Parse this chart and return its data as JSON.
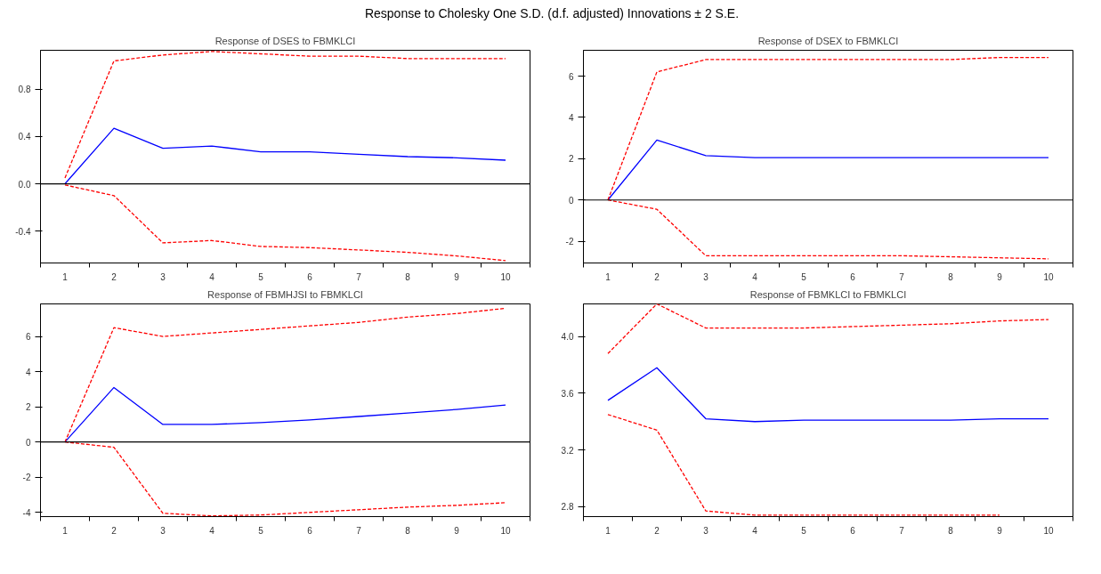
{
  "chart_data": [
    {
      "type": "line",
      "title": "Response of DSES to FBMKLCI",
      "annotations": [
        "Response to Cholesky One S.D. (d.f. adjusted) Innovations ± 2 S.E."
      ],
      "categories": [
        "1",
        "2",
        "3",
        "4",
        "5",
        "6",
        "7",
        "8",
        "9",
        "10"
      ],
      "ylim": [
        -0.67,
        1.13
      ],
      "yticks": [
        -0.4,
        {
          "value": 0,
          "label": "0.0"
        },
        0.4,
        0.8
      ],
      "grid": false,
      "series": [
        {
          "color": "#0000ff",
          "line_style": "solid",
          "values": [
            0.0,
            0.47,
            0.3,
            0.32,
            0.27,
            0.27,
            0.25,
            0.23,
            0.22,
            0.2
          ]
        },
        {
          "color": "#ff0000",
          "line_style": "dashed",
          "values": [
            0.05,
            1.04,
            1.09,
            1.12,
            1.1,
            1.08,
            1.08,
            1.06,
            1.06,
            1.06
          ]
        },
        {
          "color": "#ff0000",
          "line_style": "dashed",
          "values": [
            -0.01,
            -0.1,
            -0.5,
            -0.48,
            -0.53,
            -0.54,
            -0.56,
            -0.58,
            -0.61,
            -0.65
          ]
        }
      ],
      "ref_lines": [
        {
          "axis": "y",
          "value": 0,
          "color": "#000000"
        }
      ]
    },
    {
      "type": "line",
      "title": "Response of DSEX to FBMKLCI",
      "categories": [
        "1",
        "2",
        "3",
        "4",
        "5",
        "6",
        "7",
        "8",
        "9",
        "10"
      ],
      "ylim": [
        -3.05,
        7.25
      ],
      "yticks": [
        -2,
        0,
        2,
        4,
        6
      ],
      "grid": false,
      "series": [
        {
          "color": "#0000ff",
          "line_style": "solid",
          "values": [
            0.0,
            2.9,
            2.15,
            2.05,
            2.05,
            2.05,
            2.05,
            2.05,
            2.05,
            2.05
          ]
        },
        {
          "color": "#ff0000",
          "line_style": "dashed",
          "values": [
            0.0,
            6.2,
            6.8,
            6.8,
            6.8,
            6.8,
            6.8,
            6.8,
            6.9,
            6.9
          ]
        },
        {
          "color": "#ff0000",
          "line_style": "dashed",
          "values": [
            0.0,
            -0.45,
            -2.7,
            -2.7,
            -2.7,
            -2.7,
            -2.7,
            -2.75,
            -2.8,
            -2.85
          ]
        }
      ],
      "ref_lines": [
        {
          "axis": "y",
          "value": 0,
          "color": "#000000"
        }
      ]
    },
    {
      "type": "line",
      "title": "Response of FBMHJSI to FBMKLCI",
      "categories": [
        "1",
        "2",
        "3",
        "4",
        "5",
        "6",
        "7",
        "8",
        "9",
        "10"
      ],
      "ylim": [
        -4.24,
        7.85
      ],
      "yticks": [
        -4,
        -2,
        0,
        2,
        4,
        6
      ],
      "grid": false,
      "series": [
        {
          "color": "#0000ff",
          "line_style": "solid",
          "values": [
            0.0,
            3.1,
            1.0,
            1.0,
            1.1,
            1.25,
            1.45,
            1.65,
            1.85,
            2.1
          ]
        },
        {
          "color": "#ff0000",
          "line_style": "dashed",
          "values": [
            0.0,
            6.5,
            6.0,
            6.2,
            6.4,
            6.6,
            6.8,
            7.1,
            7.3,
            7.6
          ]
        },
        {
          "color": "#ff0000",
          "line_style": "dashed",
          "values": [
            0.0,
            -0.3,
            -4.05,
            -4.2,
            -4.15,
            -4.0,
            -3.85,
            -3.7,
            -3.6,
            -3.45
          ]
        }
      ],
      "ref_lines": [
        {
          "axis": "y",
          "value": 0,
          "color": "#000000"
        }
      ]
    },
    {
      "type": "line",
      "title": "Response of FBMKLCI to FBMKLCI",
      "categories": [
        "1",
        "2",
        "3",
        "4",
        "5",
        "6",
        "7",
        "8",
        "9",
        "10"
      ],
      "ylim": [
        2.73,
        4.23
      ],
      "yticks": [
        2.8,
        3.2,
        3.6,
        {
          "value": 4,
          "label": "4.0"
        }
      ],
      "grid": false,
      "series": [
        {
          "color": "#0000ff",
          "line_style": "solid",
          "values": [
            3.55,
            3.78,
            3.42,
            3.4,
            3.41,
            3.41,
            3.41,
            3.41,
            3.42,
            3.42
          ]
        },
        {
          "color": "#ff0000",
          "line_style": "dashed",
          "values": [
            3.88,
            4.23,
            4.06,
            4.06,
            4.06,
            4.07,
            4.08,
            4.09,
            4.11,
            4.12
          ]
        },
        {
          "color": "#ff0000",
          "line_style": "dashed",
          "values": [
            3.45,
            3.34,
            2.77,
            2.74,
            2.74,
            2.74,
            2.74,
            2.74,
            2.74,
            null
          ]
        }
      ]
    }
  ]
}
